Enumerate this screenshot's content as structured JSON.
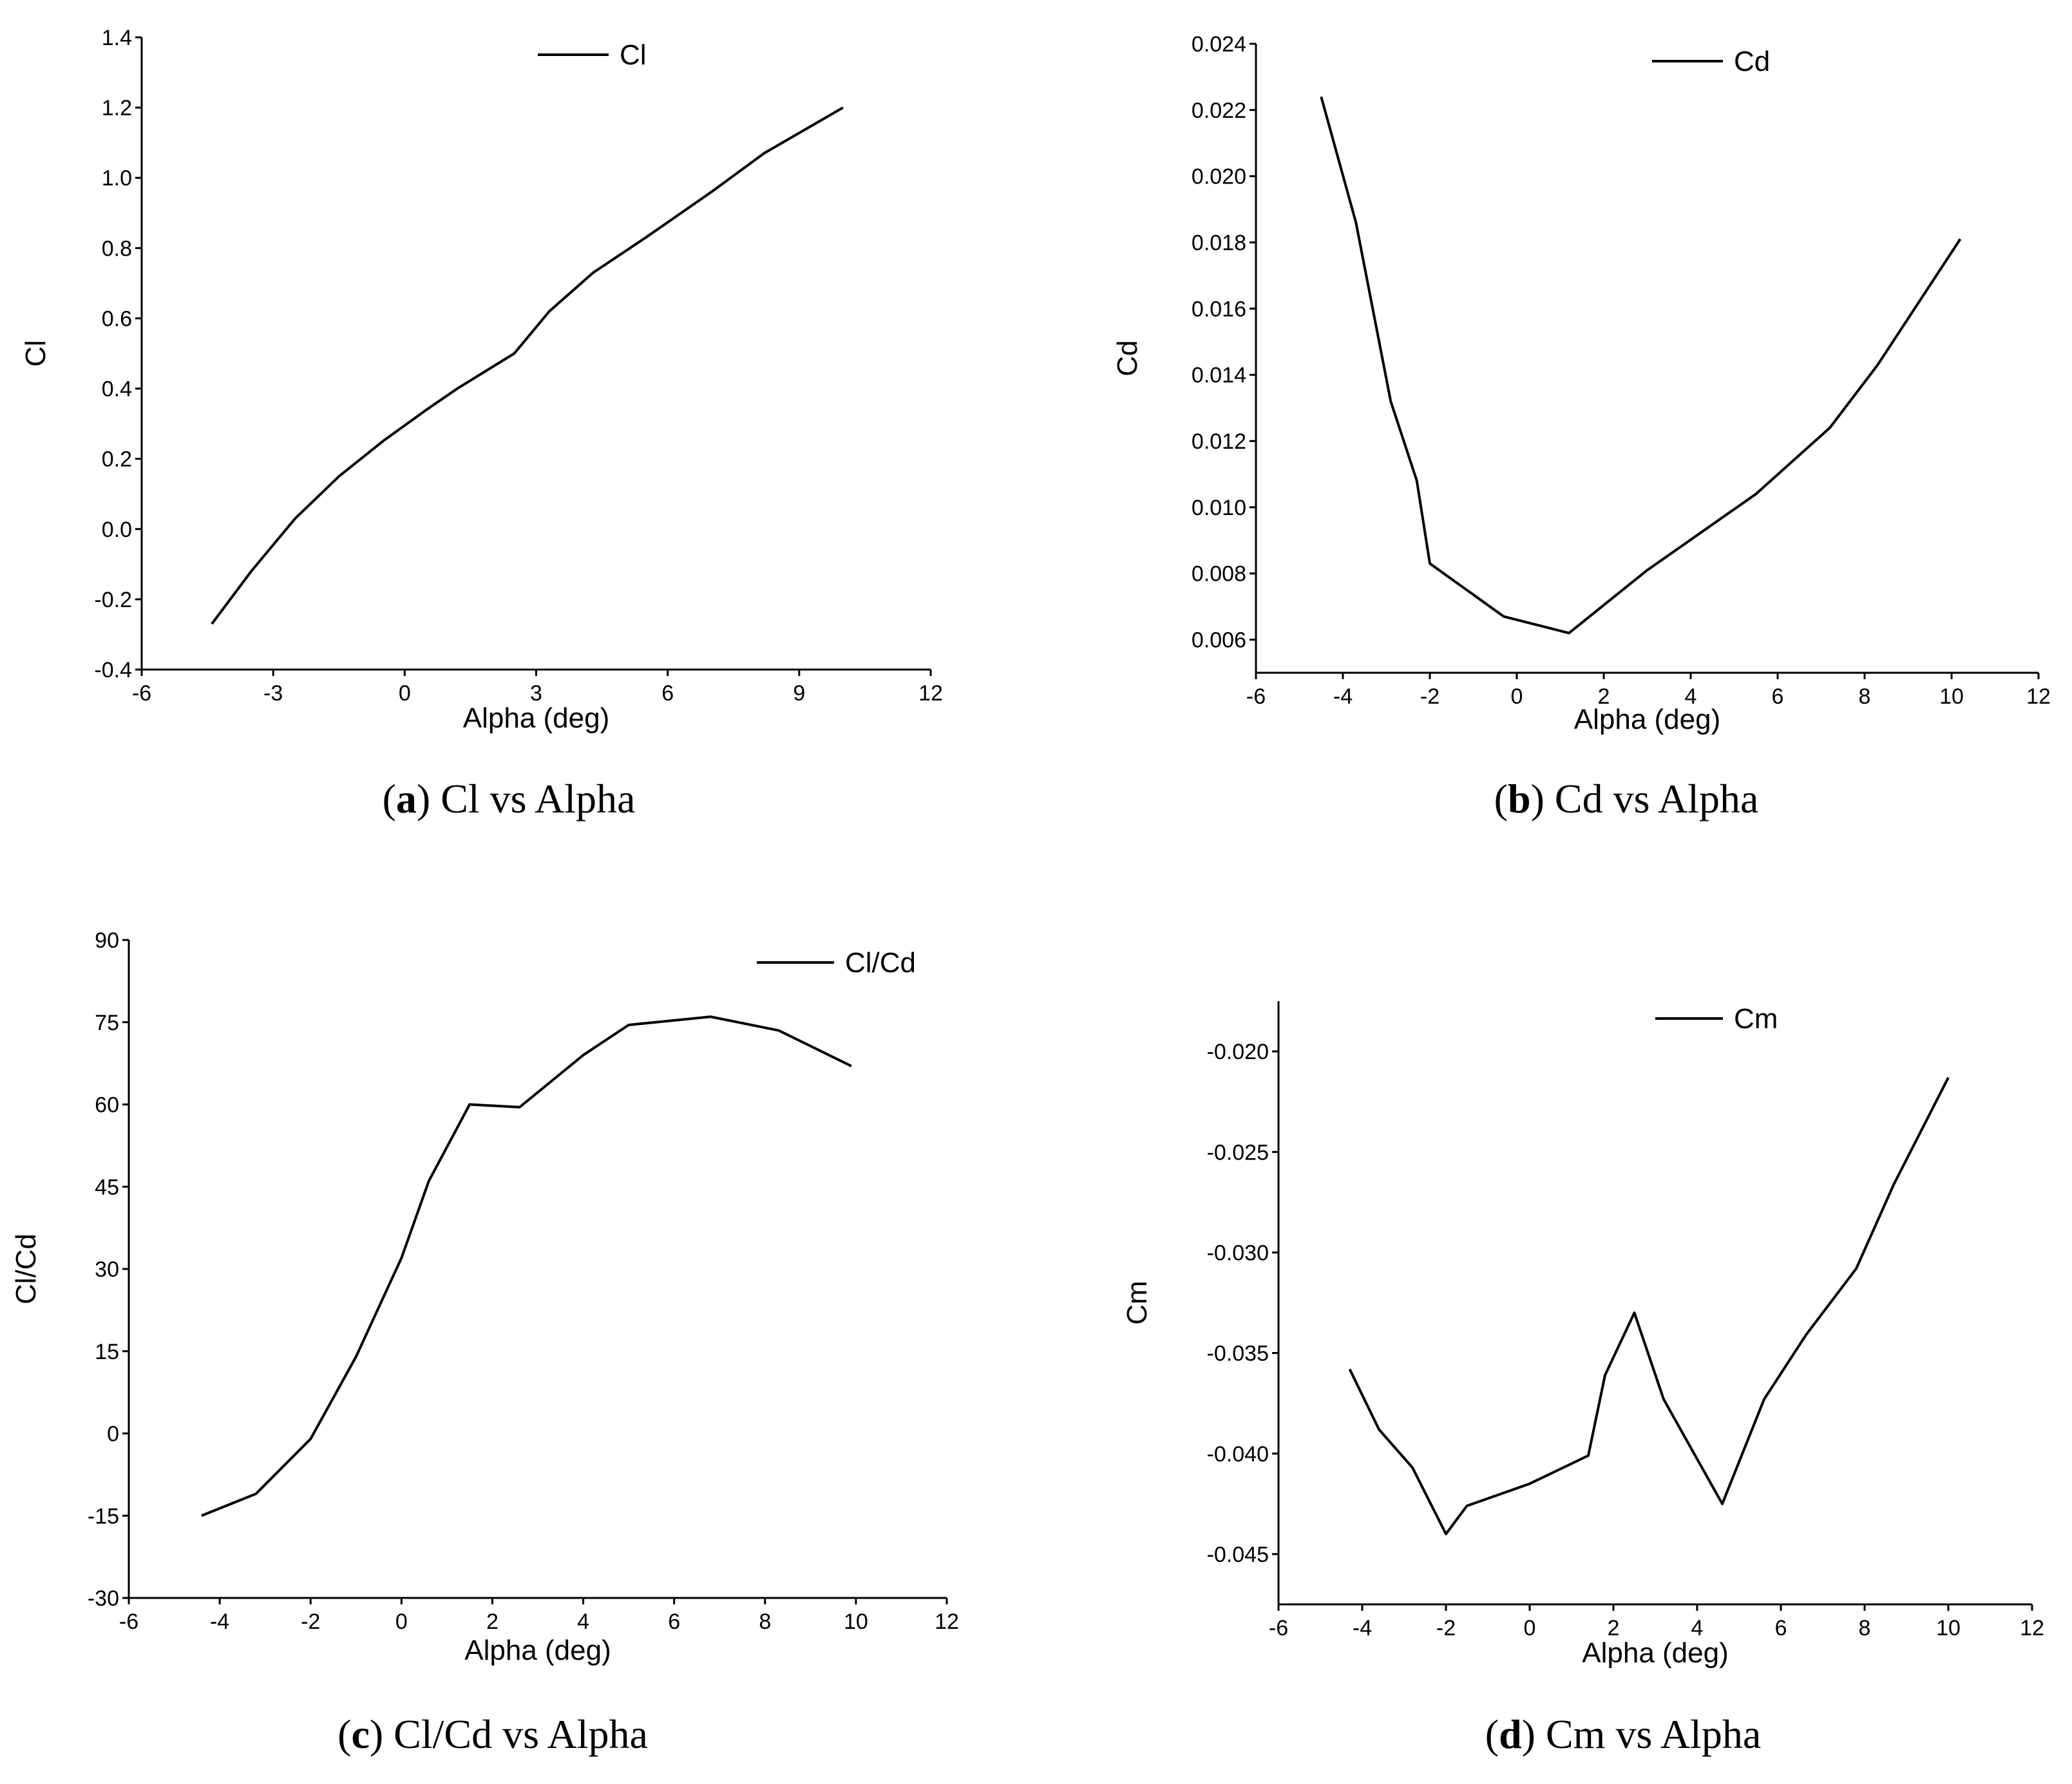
{
  "chart_data": [
    {
      "id": "a",
      "type": "line",
      "caption_label": "a",
      "caption_text": "Cl vs Alpha",
      "xlabel": "Alpha (deg)",
      "ylabel": "Cl",
      "legend": "Cl",
      "legend_position": "top-center",
      "grid": false,
      "xlim": [
        -6,
        12
      ],
      "ylim": [
        -0.4,
        1.4
      ],
      "xticks": [
        -6,
        -3,
        0,
        3,
        6,
        9,
        12
      ],
      "xtick_labels": [
        "-6",
        "-3",
        "0",
        "3",
        "6",
        "9",
        "12"
      ],
      "yticks": [
        -0.4,
        -0.2,
        0.0,
        0.2,
        0.4,
        0.6,
        0.8,
        1.0,
        1.2,
        1.4
      ],
      "ytick_labels": [
        "-0.4",
        "-0.2",
        "0.0",
        "0.2",
        "0.4",
        "0.6",
        "0.8",
        "1.0",
        "1.2",
        "1.4"
      ],
      "series": [
        {
          "name": "Cl",
          "x": [
            -4.4,
            -3.5,
            -2.9,
            -2.5,
            -1.5,
            -0.5,
            0.5,
            1.2,
            2.5,
            3.3,
            4.3,
            5.5,
            7.0,
            8.2,
            10.0
          ],
          "y": [
            -0.27,
            -0.12,
            -0.03,
            0.03,
            0.15,
            0.25,
            0.34,
            0.4,
            0.5,
            0.62,
            0.73,
            0.83,
            0.96,
            1.07,
            1.2
          ]
        }
      ]
    },
    {
      "id": "b",
      "type": "line",
      "caption_label": "b",
      "caption_text": "Cd vs Alpha",
      "xlabel": "Alpha (deg)",
      "ylabel": "Cd",
      "legend": "Cd",
      "legend_position": "top-center",
      "grid": false,
      "xlim": [
        -6,
        12
      ],
      "ylim": [
        0.005,
        0.024
      ],
      "xticks": [
        -6,
        -4,
        -2,
        0,
        2,
        4,
        6,
        8,
        10,
        12
      ],
      "xtick_labels": [
        "-6",
        "-4",
        "-2",
        "0",
        "2",
        "4",
        "6",
        "8",
        "10",
        "12"
      ],
      "yticks": [
        0.006,
        0.008,
        0.01,
        0.012,
        0.014,
        0.016,
        0.018,
        0.02,
        0.022,
        0.024
      ],
      "ytick_labels": [
        "0.006",
        "0.008",
        "0.010",
        "0.012",
        "0.014",
        "0.016",
        "0.018",
        "0.020",
        "0.022",
        "0.024"
      ],
      "series": [
        {
          "name": "Cd",
          "x": [
            -4.5,
            -3.7,
            -2.9,
            -2.3,
            -2.0,
            -0.3,
            1.2,
            3.0,
            5.5,
            7.2,
            8.3,
            10.2
          ],
          "y": [
            0.0224,
            0.0186,
            0.0132,
            0.0108,
            0.0083,
            0.0067,
            0.0062,
            0.0081,
            0.0104,
            0.0124,
            0.0143,
            0.0181
          ]
        }
      ]
    },
    {
      "id": "c",
      "type": "line",
      "caption_label": "c",
      "caption_text": "Cl/Cd vs Alpha",
      "xlabel": "Alpha (deg)",
      "ylabel": "Cl/Cd",
      "legend": "Cl/Cd",
      "legend_position": "top-right",
      "grid": false,
      "xlim": [
        -6,
        12
      ],
      "ylim": [
        -30,
        90
      ],
      "xticks": [
        -6,
        -4,
        -2,
        0,
        2,
        4,
        6,
        8,
        10,
        12
      ],
      "xtick_labels": [
        "-6",
        "-4",
        "-2",
        "0",
        "2",
        "4",
        "6",
        "8",
        "10",
        "12"
      ],
      "yticks": [
        -30,
        -15,
        0,
        15,
        30,
        45,
        60,
        75,
        90
      ],
      "ytick_labels": [
        "-30",
        "-15",
        "0",
        "15",
        "30",
        "45",
        "60",
        "75",
        "90"
      ],
      "series": [
        {
          "name": "Cl/Cd",
          "x": [
            -4.4,
            -3.2,
            -2.0,
            -1.0,
            0.0,
            0.6,
            1.5,
            2.6,
            4.0,
            5.0,
            6.8,
            8.3,
            9.9
          ],
          "y": [
            -15,
            -11,
            -1,
            14,
            32,
            46,
            60,
            59.5,
            69,
            74.5,
            76,
            73.5,
            67
          ]
        }
      ]
    },
    {
      "id": "d",
      "type": "line",
      "caption_label": "d",
      "caption_text": "Cm vs Alpha",
      "xlabel": "Alpha (deg)",
      "ylabel": "Cm",
      "legend": "Cm",
      "legend_position": "top-center",
      "grid": false,
      "xlim": [
        -6,
        12
      ],
      "ylim": [
        -0.0475,
        -0.0175
      ],
      "xticks": [
        -6,
        -4,
        -2,
        0,
        2,
        4,
        6,
        8,
        10,
        12
      ],
      "xtick_labels": [
        "-6",
        "-4",
        "-2",
        "0",
        "2",
        "4",
        "6",
        "8",
        "10",
        "12"
      ],
      "yticks": [
        -0.045,
        -0.04,
        -0.035,
        -0.03,
        -0.025,
        -0.02
      ],
      "ytick_labels": [
        "-0.045",
        "-0.040",
        "-0.035",
        "-0.030",
        "-0.025",
        "-0.020"
      ],
      "series": [
        {
          "name": "Cm",
          "x": [
            -4.3,
            -3.6,
            -2.8,
            -2.0,
            -1.5,
            0.0,
            1.4,
            1.8,
            2.5,
            3.2,
            4.6,
            5.6,
            6.6,
            7.8,
            8.7,
            10.0
          ],
          "y": [
            -0.0358,
            -0.0388,
            -0.0407,
            -0.044,
            -0.0426,
            -0.0415,
            -0.0401,
            -0.0361,
            -0.033,
            -0.0373,
            -0.0425,
            -0.0373,
            -0.0341,
            -0.0308,
            -0.0266,
            -0.0213
          ]
        }
      ]
    }
  ]
}
